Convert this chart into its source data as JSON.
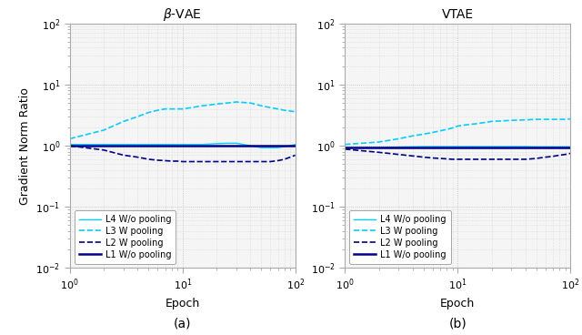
{
  "title_left": "$\\beta$-VAE",
  "title_right": "VTAE",
  "xlabel": "Epoch",
  "ylabel": "Gradient Norm Ratio",
  "xlim": [
    1,
    100
  ],
  "ylim": [
    0.01,
    100
  ],
  "caption_a": "(a)",
  "caption_b": "(b)",
  "legend_labels": [
    "L4 W/o pooling",
    "L3 W pooling",
    "L2 W pooling",
    "L1 W/o pooling"
  ],
  "colors": {
    "L4": "#00d0ff",
    "L3": "#00d0ff",
    "L2": "#00008b",
    "L1": "#00008b"
  },
  "linestyles": {
    "L4": "solid",
    "L3": "dashed",
    "L2": "dashed",
    "L1": "solid"
  },
  "linewidths": {
    "L4": 1.0,
    "L3": 1.2,
    "L2": 1.2,
    "L1": 1.8
  },
  "beta_vae": {
    "epochs": [
      1,
      2,
      3,
      4,
      5,
      6,
      7,
      8,
      9,
      10,
      12,
      15,
      20,
      25,
      30,
      40,
      50,
      60,
      70,
      80,
      90,
      100
    ],
    "L4": [
      1.05,
      1.05,
      1.05,
      1.05,
      1.05,
      1.05,
      1.05,
      1.05,
      1.05,
      1.05,
      1.05,
      1.05,
      1.08,
      1.1,
      1.1,
      1.0,
      0.93,
      0.93,
      0.93,
      0.97,
      1.0,
      1.05
    ],
    "L3": [
      1.3,
      1.8,
      2.5,
      3.0,
      3.5,
      3.8,
      4.0,
      4.0,
      4.0,
      4.0,
      4.2,
      4.5,
      4.8,
      5.0,
      5.2,
      5.0,
      4.5,
      4.2,
      4.0,
      3.8,
      3.7,
      3.6
    ],
    "L2": [
      1.0,
      0.85,
      0.7,
      0.65,
      0.6,
      0.58,
      0.57,
      0.56,
      0.56,
      0.55,
      0.55,
      0.55,
      0.55,
      0.55,
      0.55,
      0.55,
      0.55,
      0.55,
      0.57,
      0.6,
      0.65,
      0.7
    ],
    "L1": [
      1.0,
      1.0,
      1.0,
      1.0,
      1.0,
      1.0,
      1.0,
      1.0,
      1.0,
      1.0,
      1.0,
      1.0,
      1.0,
      1.0,
      1.0,
      1.0,
      1.0,
      1.0,
      1.0,
      1.0,
      1.0,
      1.0
    ]
  },
  "vtae": {
    "epochs": [
      1,
      2,
      3,
      4,
      5,
      6,
      7,
      8,
      9,
      10,
      12,
      15,
      20,
      25,
      30,
      40,
      50,
      60,
      70,
      80,
      90,
      100
    ],
    "L4": [
      0.92,
      0.93,
      0.95,
      0.96,
      0.97,
      0.97,
      0.97,
      0.97,
      0.97,
      0.97,
      0.97,
      0.97,
      0.97,
      0.97,
      0.97,
      0.97,
      0.96,
      0.96,
      0.96,
      0.96,
      0.96,
      0.96
    ],
    "L3": [
      1.05,
      1.15,
      1.3,
      1.45,
      1.55,
      1.65,
      1.75,
      1.85,
      1.95,
      2.1,
      2.2,
      2.3,
      2.5,
      2.55,
      2.6,
      2.65,
      2.7,
      2.7,
      2.7,
      2.7,
      2.7,
      2.75
    ],
    "L2": [
      0.88,
      0.78,
      0.72,
      0.68,
      0.65,
      0.63,
      0.62,
      0.61,
      0.6,
      0.6,
      0.6,
      0.6,
      0.6,
      0.6,
      0.6,
      0.6,
      0.62,
      0.65,
      0.67,
      0.7,
      0.72,
      0.75
    ],
    "L1": [
      0.93,
      0.93,
      0.93,
      0.93,
      0.93,
      0.93,
      0.93,
      0.93,
      0.93,
      0.93,
      0.93,
      0.93,
      0.93,
      0.93,
      0.93,
      0.93,
      0.93,
      0.93,
      0.93,
      0.93,
      0.93,
      0.93
    ]
  },
  "axes_facecolor": "#f5f5f5",
  "spine_color": "#aaaaaa",
  "grid_color": "#bbbbbb",
  "grid_minor_color": "#cccccc"
}
